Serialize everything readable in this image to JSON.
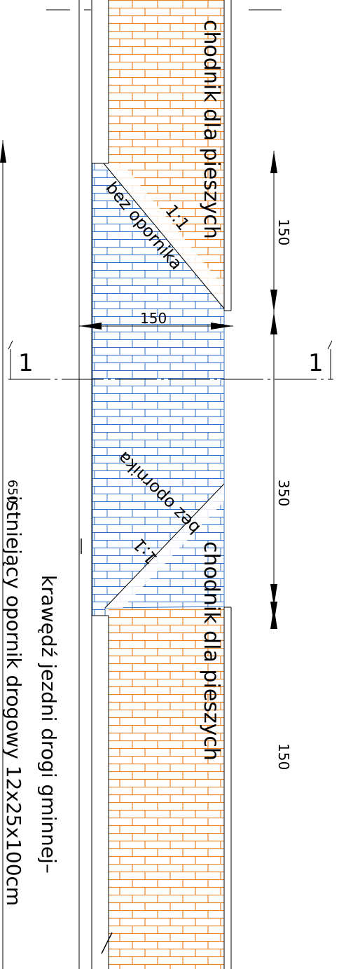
{
  "labels": {
    "sidewalk_top": "chodnik dla pieszych",
    "sidewalk_bottom": "chodnik dla pieszych",
    "ratio_top": "1:1",
    "ratio_bottom": "1:1",
    "no_curb_top": "bez opornika",
    "no_curb_bottom": "bez opornika",
    "road_edge": "krawędź jezdni drogi gminnej–",
    "existing_curb": "istniejący opornik drogowy 12x25x100cm",
    "section_left": "1",
    "section_right": "1"
  },
  "dimensions": {
    "width_150": "150",
    "top_150": "150",
    "middle_350": "350",
    "bottom_150": "150",
    "total_650": "650"
  },
  "colors": {
    "sidewalk_brick": "#e8862a",
    "crossing_brick": "#2f6fc4",
    "line": "#000000"
  }
}
